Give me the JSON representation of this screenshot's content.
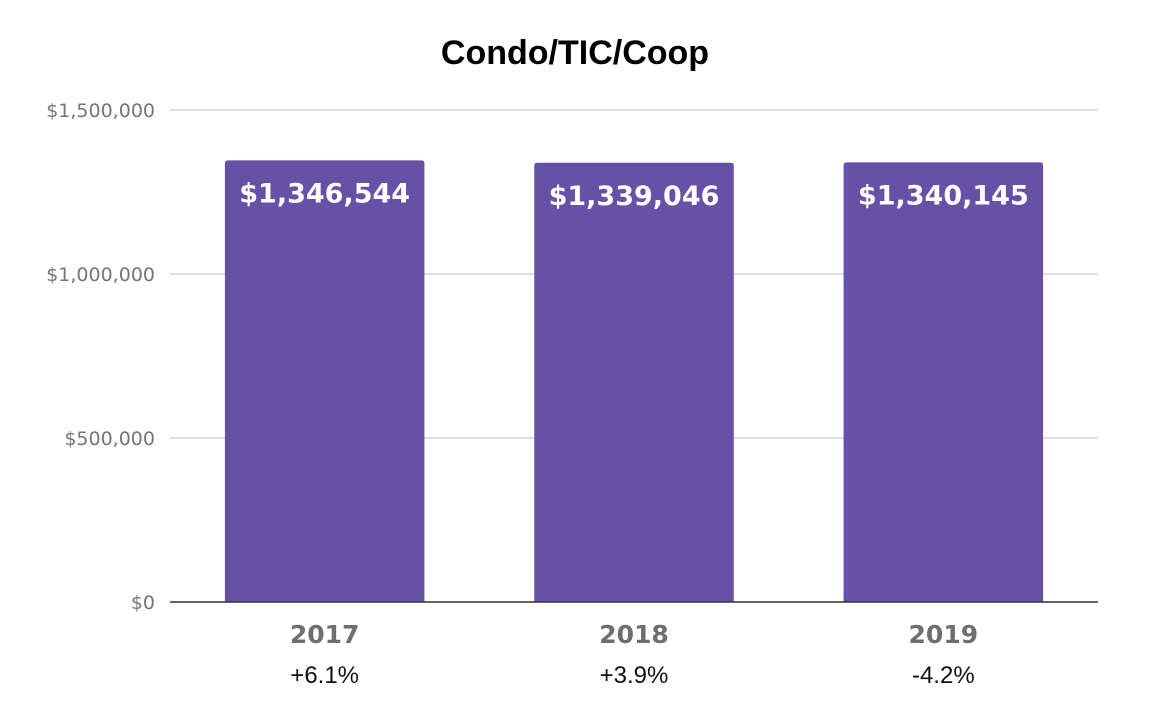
{
  "chart_data": {
    "type": "bar",
    "title": "Condo/TIC/Coop",
    "categories": [
      "2017",
      "2018",
      "2019"
    ],
    "category_sublabels": [
      "+6.1%",
      "+3.9%",
      "-4.2%"
    ],
    "values": [
      1346544,
      1339046,
      1340145
    ],
    "data_labels": [
      "$1,346,544",
      "$1,339,046",
      "$1,340,145"
    ],
    "y_ticks": [
      {
        "value": 0,
        "label": "$0"
      },
      {
        "value": 500000,
        "label": "$500,000"
      },
      {
        "value": 1000000,
        "label": "$1,000,000"
      },
      {
        "value": 1500000,
        "label": "$1,500,000"
      }
    ],
    "ylim": [
      0,
      1500000
    ],
    "xlabel": "",
    "ylabel": "",
    "grid": true,
    "legend": "none",
    "colors": {
      "bar": "#6751a6",
      "grid": "#cccccc",
      "baseline": "#333333"
    }
  }
}
